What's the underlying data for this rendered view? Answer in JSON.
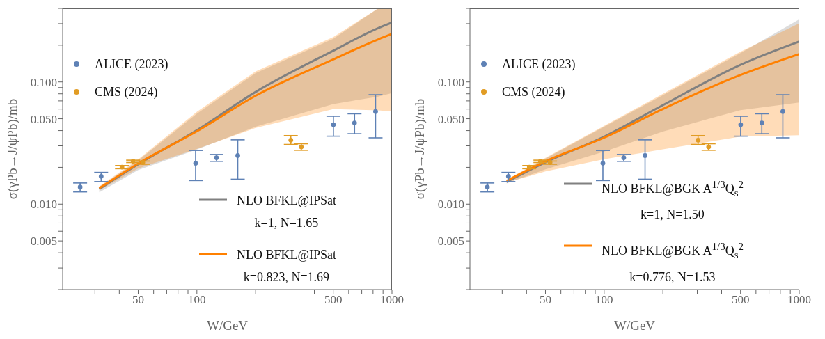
{
  "chart_data": [
    {
      "type": "scatter",
      "xlabel": "W/GeV",
      "ylabel": "σ(γPb→J/ψPb)/mb",
      "log": "xy",
      "marker": "circle",
      "line_style": "solid",
      "legend": "left",
      "xlim": [
        20.5,
        1000
      ],
      "xticks": [
        {
          "value": 30,
          "label": null
        },
        {
          "value": 40,
          "label": null
        },
        50,
        {
          "value": 60,
          "label": null
        },
        {
          "value": 70,
          "label": null
        },
        {
          "value": 80,
          "label": null
        },
        {
          "value": 90,
          "label": null
        },
        100,
        {
          "value": 200,
          "label": null
        },
        {
          "value": 300,
          "label": null
        },
        {
          "value": 400,
          "label": null
        },
        500,
        {
          "value": 600,
          "label": null
        },
        {
          "value": 700,
          "label": null
        },
        {
          "value": 800,
          "label": null
        },
        {
          "value": 900,
          "label": null
        },
        1000
      ],
      "ylim": [
        0.002,
        0.4
      ],
      "yticks": [
        {
          "value": 0.002,
          "label": null
        },
        {
          "value": 0.003,
          "label": null
        },
        {
          "value": 0.004,
          "label": null
        },
        0.005,
        {
          "value": 0.006,
          "label": null
        },
        {
          "value": 0.007,
          "label": null
        },
        {
          "value": 0.008,
          "label": null
        },
        {
          "value": 0.009,
          "label": null
        },
        {
          "value": 0.01,
          "label": "0.010"
        },
        {
          "value": 0.02,
          "label": null
        },
        {
          "value": 0.03,
          "label": null
        },
        {
          "value": 0.04,
          "label": null
        },
        {
          "value": 0.05,
          "label": "0.050"
        },
        {
          "value": 0.06,
          "label": null
        },
        {
          "value": 0.07,
          "label": null
        },
        {
          "value": 0.08,
          "label": null
        },
        {
          "value": 0.09,
          "label": null
        },
        {
          "value": 0.1,
          "label": "0.100"
        },
        {
          "value": 0.2,
          "label": null
        },
        {
          "value": 0.3,
          "label": null
        },
        {
          "value": 0.4,
          "label": null
        }
      ],
      "series": [
        {
          "name": "NLO BFKL@IPSat\nk=1, N=1.65",
          "type": "line",
          "marker": "none",
          "color": "#808080",
          "x": [
            31.6,
            50,
            100,
            200,
            500,
            850,
            1000
          ],
          "values": [
            0.0133,
            0.0212,
            0.0403,
            0.0828,
            0.18,
            0.276,
            0.306
          ],
          "lower": [
            0.0125,
            0.019,
            0.028,
            0.043,
            0.066,
            0.076,
            0.081
          ],
          "upper": [
            0.0138,
            0.0228,
            0.055,
            0.118,
            0.225,
            0.4,
            0.4
          ]
        },
        {
          "name": "NLO BFKL@IPSat\nk=0.823, N=1.69",
          "type": "line",
          "marker": "none",
          "color": "#ff8000",
          "x": [
            31.6,
            50,
            100,
            200,
            500,
            850,
            1000
          ],
          "values": [
            0.0135,
            0.0215,
            0.0395,
            0.0771,
            0.153,
            0.223,
            0.247
          ],
          "lower": [
            0.013,
            0.0196,
            0.0283,
            0.042,
            0.06,
            0.0585,
            0.0575
          ],
          "upper": [
            0.014,
            0.0232,
            0.057,
            0.122,
            0.233,
            0.4,
            0.4
          ]
        },
        {
          "name": "ALICE (2023)",
          "color": "#5e81b5",
          "x": [
            25.2,
            32.3,
            98.5,
            126,
            162,
            501,
            643,
            824
          ],
          "values": [
            0.0138,
            0.0169,
            0.0216,
            0.024,
            0.025,
            0.0447,
            0.0462,
            0.0573
          ],
          "errors": [
            [
              0.0126,
              0.0149
            ],
            [
              0.0153,
              0.0182
            ],
            [
              0.0156,
              0.0275
            ],
            [
              0.0224,
              0.0255
            ],
            [
              0.016,
              0.0336
            ],
            [
              0.036,
              0.0524
            ],
            [
              0.0377,
              0.0549
            ],
            [
              0.0349,
              0.0786
            ]
          ]
        },
        {
          "name": "CMS (2024)",
          "color": "#e19c24",
          "x": [
            41.3,
            47.1,
            52.8,
            303,
            343
          ],
          "values": [
            0.0201,
            0.0224,
            0.0219,
            0.0334,
            0.0294
          ],
          "errors": [
            [
              0.0195,
              0.0207
            ],
            [
              0.0219,
              0.0229
            ],
            [
              0.0212,
              0.0225
            ],
            [
              0.0308,
              0.0364
            ],
            [
              0.0276,
              0.0312
            ]
          ]
        }
      ]
    },
    {
      "type": "scatter",
      "xlabel": "W/GeV",
      "ylabel": "σ(γPb→J/ψPb)/mb",
      "log": "xy",
      "marker": "circle",
      "line_style": "solid",
      "legend": "left",
      "xlim": [
        20.5,
        1000
      ],
      "xticks": [
        {
          "value": 30,
          "label": null
        },
        {
          "value": 40,
          "label": null
        },
        50,
        {
          "value": 60,
          "label": null
        },
        {
          "value": 70,
          "label": null
        },
        {
          "value": 80,
          "label": null
        },
        {
          "value": 90,
          "label": null
        },
        100,
        {
          "value": 200,
          "label": null
        },
        {
          "value": 300,
          "label": null
        },
        {
          "value": 400,
          "label": null
        },
        500,
        {
          "value": 600,
          "label": null
        },
        {
          "value": 700,
          "label": null
        },
        {
          "value": 800,
          "label": null
        },
        {
          "value": 900,
          "label": null
        },
        1000
      ],
      "ylim": [
        0.002,
        0.4
      ],
      "yticks": [
        {
          "value": 0.002,
          "label": null
        },
        {
          "value": 0.003,
          "label": null
        },
        {
          "value": 0.004,
          "label": null
        },
        0.005,
        {
          "value": 0.006,
          "label": null
        },
        {
          "value": 0.007,
          "label": null
        },
        {
          "value": 0.008,
          "label": null
        },
        {
          "value": 0.009,
          "label": null
        },
        {
          "value": 0.01,
          "label": "0.010"
        },
        {
          "value": 0.02,
          "label": null
        },
        {
          "value": 0.03,
          "label": null
        },
        {
          "value": 0.04,
          "label": null
        },
        {
          "value": 0.05,
          "label": "0.050"
        },
        {
          "value": 0.06,
          "label": null
        },
        {
          "value": 0.07,
          "label": null
        },
        {
          "value": 0.08,
          "label": null
        },
        {
          "value": 0.09,
          "label": null
        },
        {
          "value": 0.1,
          "label": "0.100"
        },
        {
          "value": 0.2,
          "label": null
        },
        {
          "value": 0.3,
          "label": null
        },
        {
          "value": 0.4,
          "label": null
        }
      ],
      "series": [
        {
          "name": "NLO BFKL@BGK A$^{1/3}$Q$_{s}$$^{2}$\nk=1, N=1.50",
          "type": "line",
          "marker": "none",
          "color": "#808080",
          "x": [
            31.6,
            50,
            100,
            200,
            500,
            1000
          ],
          "values": [
            0.0152,
            0.022,
            0.0357,
            0.0646,
            0.138,
            0.214
          ],
          "lower": [
            0.0148,
            0.0193,
            0.0269,
            0.0393,
            0.0588,
            0.0678
          ],
          "upper": [
            0.0155,
            0.0236,
            0.043,
            0.078,
            0.172,
            0.325
          ]
        },
        {
          "name": "NLO BFKL@BGK A$^{1/3}$Q$_{s}$$^{2}$\nk=0.776, N=1.53",
          "type": "line",
          "marker": "none",
          "color": "#ff8000",
          "x": [
            31.6,
            50,
            100,
            200,
            500,
            1000
          ],
          "values": [
            0.0155,
            0.0224,
            0.035,
            0.0601,
            0.114,
            0.169
          ],
          "lower": [
            0.015,
            0.0185,
            0.0233,
            0.0281,
            0.0357,
            0.0366
          ],
          "upper": [
            0.0158,
            0.0239,
            0.0438,
            0.08,
            0.177,
            0.302
          ]
        },
        {
          "name": "ALICE (2023)",
          "color": "#5e81b5",
          "x": [
            25.2,
            32.3,
            98.5,
            126,
            162,
            501,
            643,
            824
          ],
          "values": [
            0.0138,
            0.0169,
            0.0216,
            0.024,
            0.025,
            0.0447,
            0.0462,
            0.0573
          ],
          "errors": [
            [
              0.0126,
              0.0149
            ],
            [
              0.0153,
              0.0182
            ],
            [
              0.0156,
              0.0275
            ],
            [
              0.0224,
              0.0255
            ],
            [
              0.016,
              0.0336
            ],
            [
              0.036,
              0.0524
            ],
            [
              0.0377,
              0.0549
            ],
            [
              0.0349,
              0.0786
            ]
          ]
        },
        {
          "name": "CMS (2024)",
          "color": "#e19c24",
          "x": [
            41.3,
            47.1,
            52.8,
            303,
            343
          ],
          "values": [
            0.0201,
            0.0224,
            0.0219,
            0.0334,
            0.0294
          ],
          "errors": [
            [
              0.0195,
              0.0207
            ],
            [
              0.0219,
              0.0229
            ],
            [
              0.0212,
              0.0225
            ],
            [
              0.0308,
              0.0364
            ],
            [
              0.0276,
              0.0312
            ]
          ]
        }
      ]
    }
  ]
}
